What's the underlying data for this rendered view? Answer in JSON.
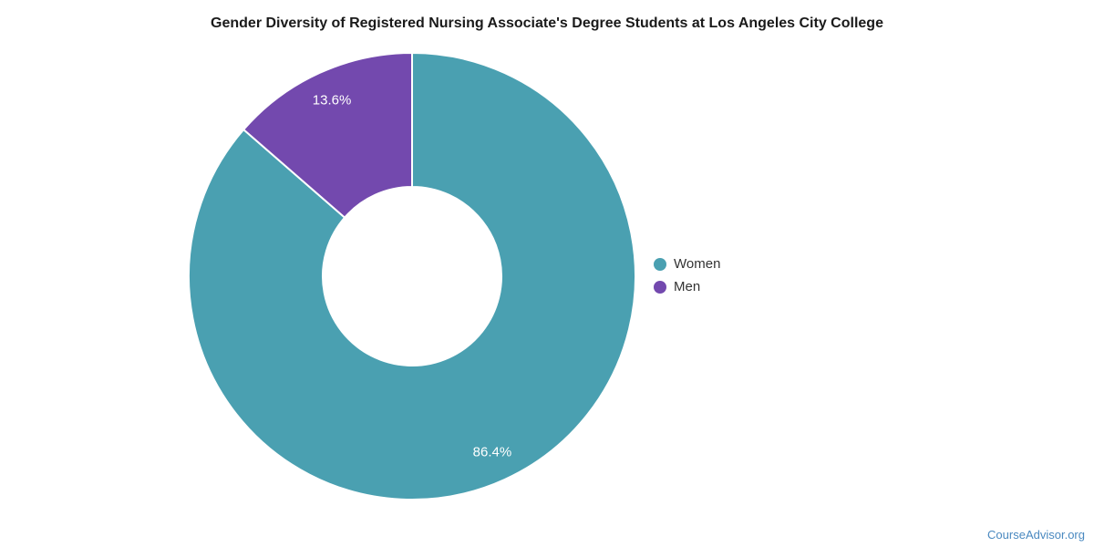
{
  "chart_data": {
    "type": "pie",
    "subtype": "donut",
    "title": "Gender Diversity of Registered Nursing Associate's Degree Students at Los Angeles City College",
    "categories": [
      "Women",
      "Men"
    ],
    "values": [
      86.4,
      13.6
    ],
    "labels": [
      "86.4%",
      "13.6%"
    ],
    "colors": [
      "#4aa0b1",
      "#7349ae"
    ],
    "label_color": "#ffffff",
    "start_angle_deg": 0,
    "direction": "clockwise",
    "inner_radius_ratio": 0.4,
    "legend_position": "right"
  },
  "footer": {
    "brand": "CourseAdvisor.org",
    "color": "#4a89c0"
  }
}
